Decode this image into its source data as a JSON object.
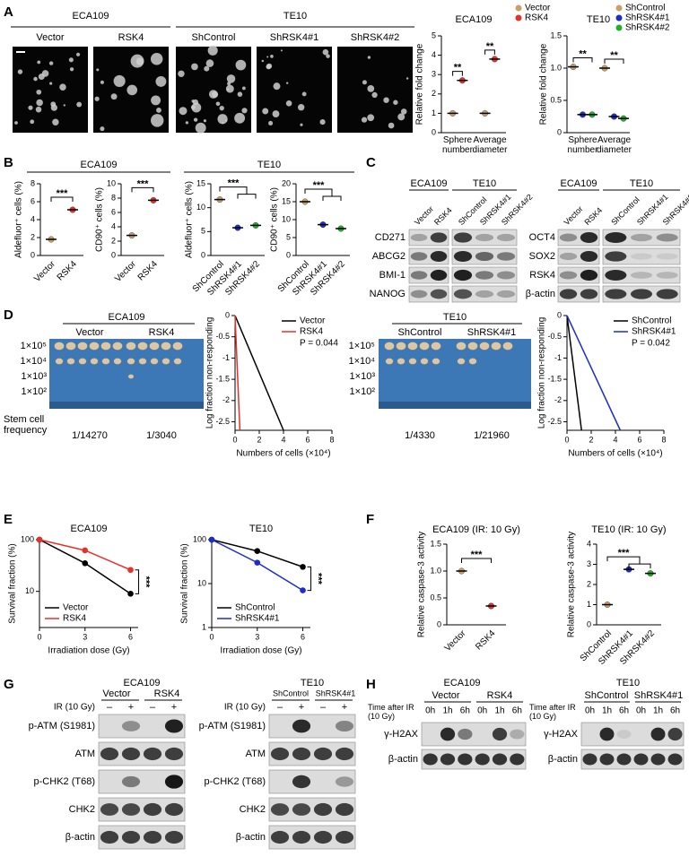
{
  "figure": {
    "panel_labels": [
      "A",
      "B",
      "C",
      "D",
      "E",
      "F",
      "G",
      "H"
    ]
  },
  "panel_a": {
    "groups": [
      {
        "title": "ECA109",
        "lanes": [
          "Vector",
          "RSK4"
        ]
      },
      {
        "title": "TE10",
        "lanes": [
          "ShControl",
          "ShRSK4#1",
          "ShRSK4#2"
        ]
      }
    ]
  },
  "panel_b": {
    "groups": [
      "ECA109",
      "TE10"
    ]
  },
  "panel_c": {
    "blots": [
      {
        "groups": [
          {
            "title": "ECA109",
            "lanes": [
              "Vector",
              "RSK4"
            ]
          },
          {
            "title": "TE10",
            "lanes": [
              "ShControl",
              "ShRSK4#1",
              "ShRSK4#2"
            ]
          }
        ],
        "rows": [
          "CD271",
          "ABCG2",
          "BMI-1",
          "NANOG"
        ]
      },
      {
        "groups": [
          {
            "title": "ECA109",
            "lanes": [
              "Vector",
              "RSK4"
            ]
          },
          {
            "title": "TE10",
            "lanes": [
              "ShControl",
              "ShRSK4#1",
              "ShRSK4#2"
            ]
          }
        ],
        "rows": [
          "OCT4",
          "SOX2",
          "RSK4",
          "β-actin"
        ]
      }
    ]
  },
  "panel_d": {
    "xenografts": [
      {
        "title": "ECA109",
        "lanes": [
          "Vector",
          "RSK4"
        ],
        "doses": [
          "1×10⁵",
          "1×10⁴",
          "1×10³",
          "1×10²"
        ],
        "frequency_label": "Stem cell frequency",
        "frequencies": [
          "1/14270",
          "1/3040"
        ]
      },
      {
        "title": "TE10",
        "lanes": [
          "ShControl",
          "ShRSK4#1"
        ],
        "doses": [
          "1×10⁵",
          "1×10⁴",
          "1×10³",
          "1×10²"
        ],
        "frequencies": [
          "1/4330",
          "1/21960"
        ]
      }
    ]
  },
  "panel_g": {
    "blots": [
      {
        "title": "ECA109",
        "lanes": [
          "Vector",
          "RSK4"
        ],
        "treatment": "IR (10 Gy)",
        "signs": [
          "–",
          "+",
          "–",
          "+"
        ],
        "rows": [
          "p-ATM (S1981)",
          "ATM",
          "p-CHK2 (T68)",
          "CHK2",
          "β-actin"
        ]
      },
      {
        "title": "TE10",
        "lanes": [
          "ShControl",
          "ShRSK4#1"
        ],
        "treatment": "IR (10 Gy)",
        "signs": [
          "–",
          "+",
          "–",
          "+"
        ],
        "rows": [
          "p-ATM (S1981)",
          "ATM",
          "p-CHK2 (T68)",
          "CHK2",
          "β-actin"
        ]
      }
    ]
  },
  "panel_h": {
    "blots": [
      {
        "title": "ECA109",
        "lanes": [
          "Vector",
          "RSK4"
        ],
        "time_label": "Time after IR (10 Gy)",
        "times": [
          "0h",
          "1h",
          "6h",
          "0h",
          "1h",
          "6h"
        ],
        "rows": [
          "γ-H2AX",
          "β-actin"
        ]
      },
      {
        "title": "TE10",
        "lanes": [
          "ShControl",
          "ShRSK4#1"
        ],
        "time_label": "Time after IR (10 Gy)",
        "times": [
          "0h",
          "1h",
          "6h",
          "0h",
          "1h",
          "6h"
        ],
        "rows": [
          "γ-H2AX",
          "β-actin"
        ]
      }
    ]
  },
  "chart_data": [
    {
      "type": "dot",
      "title": "ECA109",
      "y_label": "Relative fold change",
      "categories": [
        "Sphere number",
        "Average diameter"
      ],
      "series": [
        {
          "name": "Vector",
          "color": "#c9a066",
          "values": [
            1.0,
            1.0
          ]
        },
        {
          "name": "RSK4",
          "color": "#e8302a",
          "values": [
            2.7,
            3.8
          ]
        }
      ],
      "ylim": [
        0,
        5
      ],
      "yticks": [
        0,
        1,
        2,
        3,
        4,
        5
      ],
      "significance": [
        "**",
        "**"
      ]
    },
    {
      "type": "dot",
      "title": "TE10",
      "y_label": "Relative fold change",
      "categories": [
        "Sphere number",
        "Average diameter"
      ],
      "series": [
        {
          "name": "ShControl",
          "color": "#c9a066",
          "values": [
            1.02,
            1.0
          ]
        },
        {
          "name": "ShRSK4#1",
          "color": "#1f2bd0",
          "values": [
            0.28,
            0.25
          ]
        },
        {
          "name": "ShRSK4#2",
          "color": "#22b02a",
          "values": [
            0.28,
            0.22
          ]
        }
      ],
      "ylim": [
        0,
        1.5
      ],
      "yticks": [
        0,
        0.5,
        {
          "value": 1,
          "label": "1.0"
        },
        1.5
      ],
      "significance": [
        "**",
        "**"
      ]
    },
    {
      "type": "dot",
      "y_label": "Aldefluor⁺ cells (%)",
      "categories": [
        "Vector",
        "RSK4"
      ],
      "colors": [
        "#c9a066",
        "#e8302a"
      ],
      "values": [
        1.8,
        5.1
      ],
      "ylim": [
        0,
        8
      ],
      "yticks": [
        0,
        2,
        4,
        6,
        8
      ],
      "significance": [
        "***"
      ]
    },
    {
      "type": "dot",
      "y_label": "CD90⁺ cells (%)",
      "categories": [
        "Vector",
        "RSK4"
      ],
      "colors": [
        "#c9a066",
        "#e8302a"
      ],
      "values": [
        2.8,
        7.7
      ],
      "ylim": [
        0,
        10
      ],
      "yticks": [
        0,
        2,
        4,
        6,
        8,
        10
      ],
      "significance": [
        "***"
      ]
    },
    {
      "type": "dot",
      "y_label": "Aldefluor⁺ cells (%)",
      "categories": [
        "ShControl",
        "ShRSK4#1",
        "ShRSK4#2"
      ],
      "colors": [
        "#c9a066",
        "#1f2bd0",
        "#22b02a"
      ],
      "values": [
        11.7,
        5.8,
        6.3
      ],
      "ylim": [
        0,
        15
      ],
      "yticks": [
        0,
        5,
        10,
        15
      ],
      "significance": [
        "***"
      ]
    },
    {
      "type": "dot",
      "y_label": "CD90⁺ cells (%)",
      "categories": [
        "ShControl",
        "ShRSK4#1",
        "ShRSK4#2"
      ],
      "colors": [
        "#c9a066",
        "#1f2bd0",
        "#22b02a"
      ],
      "values": [
        15.0,
        8.6,
        7.5
      ],
      "ylim": [
        0,
        20
      ],
      "yticks": [
        0,
        5,
        10,
        15,
        20
      ],
      "significance": [
        "***"
      ]
    },
    {
      "type": "line",
      "x_label": "Numbers of cells (×10⁴)",
      "y_label": "Log fraction non-responding",
      "series": [
        {
          "name": "Vector",
          "color": "#000000",
          "x": [
            0,
            4
          ],
          "values": [
            0,
            -2.7
          ]
        },
        {
          "name": "RSK4",
          "color": "#e8302a",
          "x": [
            0,
            0.4
          ],
          "values": [
            0,
            -2.7
          ]
        }
      ],
      "xlim": [
        0,
        8
      ],
      "xticks": [
        0,
        2,
        4,
        6,
        8
      ],
      "ylim": [
        -2.7,
        0
      ],
      "yticks": [
        0,
        -0.5,
        -1,
        -1.5,
        -2,
        -2.5
      ],
      "annotation": "P = 0.044",
      "legend": "upper right"
    },
    {
      "type": "line",
      "x_label": "Numbers of cells (×10⁴)",
      "y_label": "Log fraction non-responding",
      "series": [
        {
          "name": "ShControl",
          "color": "#000000",
          "x": [
            0,
            1.2
          ],
          "values": [
            0,
            -2.7
          ]
        },
        {
          "name": "ShRSK4#1",
          "color": "#1f2bd0",
          "x": [
            0,
            4.4
          ],
          "values": [
            0,
            -2.7
          ]
        }
      ],
      "xlim": [
        0,
        8
      ],
      "xticks": [
        0,
        2,
        4,
        6,
        8
      ],
      "ylim": [
        -2.7,
        0
      ],
      "yticks": [
        0,
        -0.5,
        -1,
        -1.5,
        -2,
        -2.5
      ],
      "annotation": "P = 0.042",
      "legend": "upper right"
    },
    {
      "type": "line",
      "title": "ECA109",
      "x_label": "Irradiation dose (Gy)",
      "y_label": "Survival fraction (%)",
      "x": [
        0,
        3,
        6
      ],
      "series": [
        {
          "name": "Vector",
          "color": "#000000",
          "values": [
            100,
            35,
            9
          ]
        },
        {
          "name": "RSK4",
          "color": "#e8302a",
          "values": [
            100,
            62,
            26
          ]
        }
      ],
      "xlim": [
        0,
        6.5
      ],
      "xticks": [
        0,
        3,
        6
      ],
      "ylim": [
        2,
        100
      ],
      "yticks": [
        10,
        100
      ],
      "log": true,
      "legend": "lower left",
      "significance": [
        "***"
      ]
    },
    {
      "type": "line",
      "title": "TE10",
      "x_label": "Irradiation dose (Gy)",
      "y_label": "Survival fraction (%)",
      "x": [
        0,
        3,
        6
      ],
      "series": [
        {
          "name": "ShControl",
          "color": "#000000",
          "values": [
            100,
            55,
            24
          ]
        },
        {
          "name": "ShRSK4#1",
          "color": "#1f2bd0",
          "values": [
            100,
            30,
            7
          ]
        }
      ],
      "xlim": [
        0,
        6.5
      ],
      "xticks": [
        0,
        3,
        6
      ],
      "ylim": [
        1,
        100
      ],
      "yticks": [
        1,
        10,
        100
      ],
      "log": true,
      "legend": "lower left",
      "significance": [
        "***"
      ]
    },
    {
      "type": "dot",
      "title": "ECA109 (IR: 10 Gy)",
      "y_label": "Relative caspase-3 activity",
      "categories": [
        "Vector",
        "RSK4"
      ],
      "colors": [
        "#c9a066",
        "#e8302a"
      ],
      "values": [
        1.0,
        0.35
      ],
      "ylim": [
        0,
        1.5
      ],
      "yticks": [
        0,
        0.5,
        {
          "value": 1,
          "label": "1.0"
        },
        1.5
      ],
      "significance": [
        "***"
      ]
    },
    {
      "type": "dot",
      "title": "TE10 (IR: 10 Gy)",
      "y_label": "Relative caspase-3 activity",
      "categories": [
        "ShControl",
        "ShRSK4#1",
        "ShRSK4#2"
      ],
      "colors": [
        "#c9a066",
        "#1f2bd0",
        "#22b02a"
      ],
      "values": [
        1.0,
        2.75,
        2.55
      ],
      "ylim": [
        0,
        4
      ],
      "yticks": [
        0,
        1,
        2,
        3,
        4
      ],
      "significance": [
        "***"
      ]
    }
  ]
}
